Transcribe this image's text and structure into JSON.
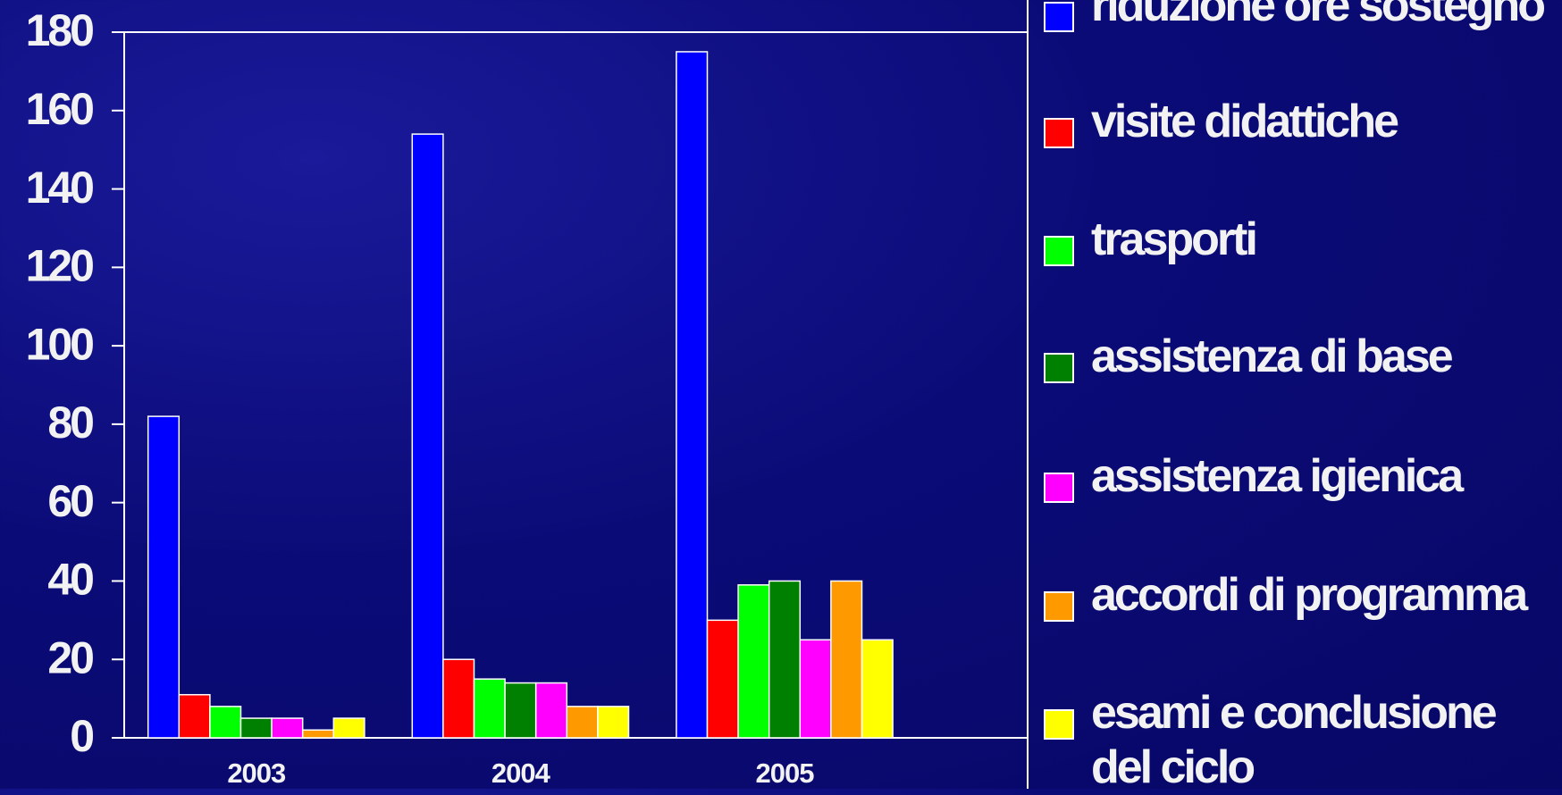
{
  "chart_data": {
    "type": "bar",
    "categories": [
      "2003",
      "2004",
      "2005"
    ],
    "series": [
      {
        "name": "riduzione ore sostegno",
        "color": "#0000ff",
        "values": [
          82,
          154,
          175
        ]
      },
      {
        "name": "visite didattiche",
        "color": "#ff0000",
        "values": [
          11,
          20,
          30
        ]
      },
      {
        "name": "trasporti",
        "color": "#00ff00",
        "values": [
          8,
          15,
          39
        ]
      },
      {
        "name": "assistenza di base",
        "color": "#008000",
        "values": [
          5,
          14,
          40
        ]
      },
      {
        "name": "assistenza igienica",
        "color": "#ff00ff",
        "values": [
          5,
          14,
          25
        ]
      },
      {
        "name": "accordi di programma",
        "color": "#ff9900",
        "values": [
          2,
          8,
          40
        ]
      },
      {
        "name": "esami e conclusione del ciclo",
        "color": "#ffff00",
        "values": [
          5,
          8,
          25
        ]
      }
    ],
    "ylim": [
      0,
      180
    ],
    "yticks": [
      0,
      20,
      40,
      60,
      80,
      100,
      120,
      140,
      160,
      180
    ],
    "grid": false
  }
}
